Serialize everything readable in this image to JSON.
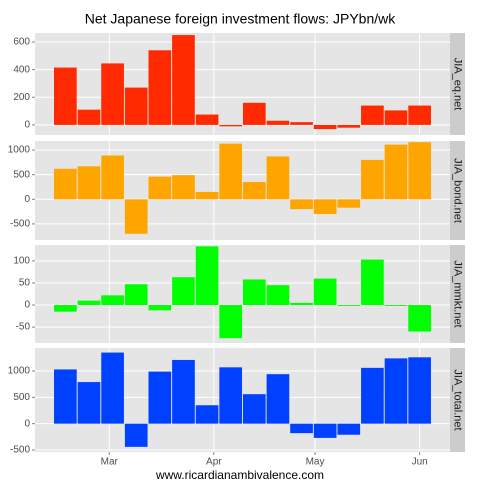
{
  "title": "Net Japanese foreign investment flows: JPYbn/wk",
  "footer": "www.ricardianambivalence.com",
  "chart_data": [
    {
      "type": "bar",
      "strip": "JIA_eq.net",
      "x": [
        47,
        54,
        61,
        68,
        75,
        82,
        89,
        96,
        103,
        110,
        117,
        124,
        131,
        138,
        145,
        152
      ],
      "xlim": [
        38,
        161
      ],
      "series": [
        {
          "color": "#ff2a00",
          "values": [
            415,
            110,
            445,
            270,
            540,
            650,
            75,
            -10,
            160,
            30,
            20,
            -30,
            -20,
            140,
            105,
            140
          ]
        }
      ],
      "ylim": [
        -73,
        665
      ],
      "yticks": [
        0,
        200,
        400,
        600
      ],
      "grid": true
    },
    {
      "type": "bar",
      "strip": "JIA_bond.net",
      "x": [
        47,
        54,
        61,
        68,
        75,
        82,
        89,
        96,
        103,
        110,
        117,
        124,
        131,
        138,
        145,
        152
      ],
      "xlim": [
        38,
        161
      ],
      "series": [
        {
          "color": "#ffa500",
          "values": [
            620,
            670,
            890,
            -700,
            460,
            490,
            150,
            1130,
            350,
            870,
            -200,
            -300,
            -170,
            800,
            1110,
            1160
          ]
        }
      ],
      "ylim": [
        -827,
        1184
      ],
      "yticks": [
        -500,
        0,
        500,
        1000
      ],
      "grid": true
    },
    {
      "type": "bar",
      "strip": "JIA_mmkt.net",
      "x": [
        47,
        54,
        61,
        68,
        75,
        82,
        89,
        96,
        103,
        110,
        117,
        124,
        131,
        138,
        145,
        152
      ],
      "xlim": [
        38,
        161
      ],
      "series": [
        {
          "color": "#00ff00",
          "values": [
            -15,
            10,
            22,
            47,
            -12,
            63,
            133,
            -75,
            58,
            45,
            5,
            60,
            -2,
            103,
            -2,
            -60
          ]
        }
      ],
      "ylim": [
        -86,
        136
      ],
      "yticks": [
        -50,
        0,
        50,
        100
      ],
      "grid": true
    },
    {
      "type": "bar",
      "strip": "JIA_total.net",
      "x": [
        47,
        54,
        61,
        68,
        75,
        82,
        89,
        96,
        103,
        110,
        117,
        124,
        131,
        138,
        145,
        152
      ],
      "xlim": [
        38,
        161
      ],
      "xticks": [
        {
          "value": 60,
          "label": "Mar"
        },
        {
          "value": 91,
          "label": "Apr"
        },
        {
          "value": 121,
          "label": "May"
        },
        {
          "value": 152,
          "label": "Jun"
        }
      ],
      "series": [
        {
          "color": "#0040ff",
          "values": [
            1030,
            790,
            1350,
            -440,
            990,
            1210,
            350,
            1070,
            560,
            940,
            -180,
            -270,
            -210,
            1060,
            1240,
            1260
          ]
        }
      ],
      "ylim": [
        -538,
        1437
      ],
      "yticks": [
        -500,
        0,
        500,
        1000
      ],
      "grid": true
    }
  ]
}
